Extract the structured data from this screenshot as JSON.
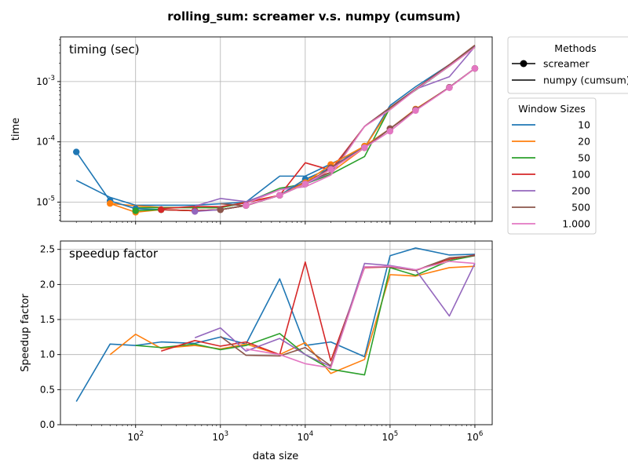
{
  "chart_data": {
    "type": "line",
    "title": "rolling_sum:  screamer v.s. numpy (cumsum)",
    "xlabel": "data size",
    "x_scale": "log",
    "x_tick_labels": [
      "10^2",
      "10^3",
      "10^4",
      "10^5",
      "10^6"
    ],
    "x_ticks": [
      100,
      1000,
      10000,
      100000,
      1000000
    ],
    "xlim": [
      13,
      1600000
    ],
    "legend_methods": {
      "title": "Methods",
      "placement": "outside top-right",
      "entries": [
        {
          "label": "screamer",
          "style": "line-with-dot"
        },
        {
          "label": "numpy (cumsum)",
          "style": "line"
        }
      ]
    },
    "legend_windows": {
      "title": "Window Sizes",
      "placement": "outside right",
      "entries": [
        {
          "label": "10",
          "color": "#1f77b4"
        },
        {
          "label": "20",
          "color": "#ff7f0e"
        },
        {
          "label": "50",
          "color": "#2ca02c"
        },
        {
          "label": "100",
          "color": "#d62728"
        },
        {
          "label": "200",
          "color": "#9467bd"
        },
        {
          "label": "500",
          "color": "#8c564b"
        },
        {
          "label": "1.000",
          "color": "#e377c2"
        }
      ]
    },
    "panels": [
      {
        "id": "timing",
        "annotation": "timing (sec)",
        "ylabel": "time",
        "y_scale": "log",
        "ylim": [
          4.8e-06,
          0.0055
        ],
        "y_ticks": [
          1e-05,
          0.0001,
          0.001
        ],
        "y_tick_labels": [
          "10^-5",
          "10^-4",
          "10^-3"
        ],
        "grid": true,
        "screamer_series": [
          {
            "window": "10",
            "color": "#1f77b4",
            "x": [
              20,
              50,
              100,
              200,
              500,
              1000,
              2000,
              5000,
              10000,
              20000,
              50000,
              100000,
              200000,
              500000,
              1000000
            ],
            "y": [
              6.8e-05,
              1.05e-05,
              7.8e-06,
              7.5e-06,
              7.2e-06,
              7.5e-06,
              8.8e-06,
              1.3e-05,
              2.4e-05,
              3.7e-05,
              8.5e-05,
              0.000165,
              0.00034,
              0.0008,
              0.00165
            ]
          },
          {
            "window": "20",
            "color": "#ff7f0e",
            "x": [
              50,
              100,
              200,
              500,
              1000,
              2000,
              5000,
              10000,
              20000,
              50000,
              100000,
              200000,
              500000,
              1000000
            ],
            "y": [
              9.5e-06,
              6.8e-06,
              7.5e-06,
              7.2e-06,
              7.5e-06,
              8.8e-06,
              1.3e-05,
              2.1e-05,
              4.2e-05,
              8.5e-05,
              0.000165,
              0.00035,
              0.0008,
              0.00165
            ]
          },
          {
            "window": "50",
            "color": "#2ca02c",
            "x": [
              100,
              200,
              500,
              1000,
              2000,
              5000,
              10000,
              20000,
              50000,
              100000,
              200000,
              500000,
              1000000
            ],
            "y": [
              7.2e-06,
              7.5e-06,
              7.2e-06,
              7.5e-06,
              8.8e-06,
              1.3e-05,
              2e-05,
              3.7e-05,
              8e-05,
              0.000165,
              0.00034,
              0.0008,
              0.00165
            ]
          },
          {
            "window": "100",
            "color": "#d62728",
            "x": [
              200,
              500,
              1000,
              2000,
              5000,
              10000,
              20000,
              50000,
              100000,
              200000,
              500000,
              1000000
            ],
            "y": [
              7.5e-06,
              7.2e-06,
              7.5e-06,
              8.8e-06,
              1.3e-05,
              2e-05,
              3.7e-05,
              8e-05,
              0.000165,
              0.00034,
              0.0008,
              0.00165
            ]
          },
          {
            "window": "200",
            "color": "#9467bd",
            "x": [
              500,
              1000,
              2000,
              5000,
              10000,
              20000,
              50000,
              100000,
              200000,
              500000,
              1000000
            ],
            "y": [
              7e-06,
              7.5e-06,
              8.8e-06,
              1.3e-05,
              2e-05,
              3.7e-05,
              8e-05,
              0.000165,
              0.00034,
              0.0008,
              0.00165
            ]
          },
          {
            "window": "500",
            "color": "#8c564b",
            "x": [
              1000,
              2000,
              5000,
              10000,
              20000,
              50000,
              100000,
              200000,
              500000,
              1000000
            ],
            "y": [
              7.5e-06,
              8.8e-06,
              1.3e-05,
              2e-05,
              3.7e-05,
              8e-05,
              0.000165,
              0.00034,
              0.0008,
              0.00165
            ]
          },
          {
            "window": "1.000",
            "color": "#e377c2",
            "x": [
              2000,
              5000,
              10000,
              20000,
              50000,
              100000,
              200000,
              500000,
              1000000
            ],
            "y": [
              8.8e-06,
              1.3e-05,
              2e-05,
              3.5e-05,
              8e-05,
              0.00015,
              0.00033,
              0.00079,
              0.00165
            ]
          }
        ],
        "numpy_series": [
          {
            "window": "10",
            "color": "#1f77b4",
            "x": [
              20,
              50,
              100,
              200,
              500,
              1000,
              2000,
              5000,
              10000,
              20000,
              50000,
              100000,
              200000,
              500000,
              1000000
            ],
            "y": [
              2.3e-05,
              1.2e-05,
              8.9e-06,
              8.9e-06,
              8.9e-06,
              9.4e-06,
              1e-05,
              2.7e-05,
              2.7e-05,
              4.3e-05,
              8e-05,
              0.0004,
              0.00082,
              0.0019,
              0.0039
            ]
          },
          {
            "window": "20",
            "color": "#ff7f0e",
            "x": [
              50,
              100,
              200,
              500,
              1000,
              2000,
              5000,
              10000,
              20000,
              50000,
              100000,
              200000,
              500000,
              1000000
            ],
            "y": [
              9.5e-06,
              8.7e-06,
              8.2e-06,
              8.1e-06,
              8.1e-06,
              1e-05,
              1.3e-05,
              2.4e-05,
              3.1e-05,
              8e-05,
              0.00036,
              0.00075,
              0.0018,
              0.0037
            ]
          },
          {
            "window": "50",
            "color": "#2ca02c",
            "x": [
              100,
              200,
              500,
              1000,
              2000,
              5000,
              10000,
              20000,
              50000,
              100000,
              200000,
              500000,
              1000000
            ],
            "y": [
              8.1e-06,
              8.1e-06,
              8.1e-06,
              8.1e-06,
              9.8e-06,
              1.7e-05,
              2e-05,
              2.9e-05,
              5.7e-05,
              0.00037,
              0.00072,
              0.0018,
              0.0038
            ]
          },
          {
            "window": "100",
            "color": "#d62728",
            "x": [
              200,
              500,
              1000,
              2000,
              5000,
              10000,
              20000,
              50000,
              100000,
              200000,
              500000,
              1000000
            ],
            "y": [
              7.8e-06,
              8.5e-06,
              8.4e-06,
              9.8e-06,
              1.3e-05,
              4.5e-05,
              3.4e-05,
              0.00018,
              0.00037,
              0.00075,
              0.0019,
              0.004
            ]
          },
          {
            "window": "200",
            "color": "#9467bd",
            "x": [
              500,
              1000,
              2000,
              5000,
              10000,
              20000,
              50000,
              100000,
              200000,
              500000,
              1000000
            ],
            "y": [
              8.6e-06,
              1.15e-05,
              1.02e-05,
              1.6e-05,
              2e-05,
              3.1e-05,
              0.00018,
              0.00037,
              0.00075,
              0.0012,
              0.0038
            ]
          },
          {
            "window": "500",
            "color": "#8c564b",
            "x": [
              1000,
              2000,
              5000,
              10000,
              20000,
              50000,
              100000,
              200000,
              500000,
              1000000
            ],
            "y": [
              9.4e-06,
              8.7e-06,
              1.3e-05,
              2.2e-05,
              3.1e-05,
              0.00018,
              0.00037,
              0.00075,
              0.0019,
              0.004
            ]
          },
          {
            "window": "1.000",
            "color": "#e377c2",
            "x": [
              2000,
              5000,
              10000,
              20000,
              50000,
              100000,
              200000,
              500000,
              1000000
            ],
            "y": [
              9.5e-06,
              1.6e-05,
              1.8e-05,
              2.8e-05,
              0.00018,
              0.00034,
              0.00073,
              0.0018,
              0.0037
            ]
          }
        ]
      },
      {
        "id": "speedup",
        "annotation": "speedup factor",
        "ylabel": "Speedup factor",
        "y_scale": "linear",
        "ylim": [
          0,
          2.62
        ],
        "y_ticks": [
          0,
          0.5,
          1,
          1.5,
          2,
          2.5
        ],
        "y_tick_labels": [
          "0.0",
          "0.5",
          "1.0",
          "1.5",
          "2.0",
          "2.5"
        ],
        "grid": true,
        "series": [
          {
            "window": "10",
            "color": "#1f77b4",
            "x": [
              20,
              50,
              100,
              200,
              500,
              1000,
              2000,
              5000,
              10000,
              20000,
              50000,
              100000,
              200000,
              500000,
              1000000
            ],
            "y": [
              0.33,
              1.15,
              1.13,
              1.18,
              1.16,
              1.25,
              1.15,
              2.08,
              1.13,
              1.18,
              0.97,
              2.41,
              2.52,
              2.42,
              2.43
            ]
          },
          {
            "window": "20",
            "color": "#ff7f0e",
            "x": [
              50,
              100,
              200,
              500,
              1000,
              2000,
              5000,
              10000,
              20000,
              50000,
              100000,
              200000,
              500000,
              1000000
            ],
            "y": [
              1.0,
              1.29,
              1.09,
              1.13,
              1.08,
              1.15,
              1.0,
              1.17,
              0.73,
              0.93,
              2.14,
              2.12,
              2.24,
              2.26
            ]
          },
          {
            "window": "50",
            "color": "#2ca02c",
            "x": [
              100,
              200,
              500,
              1000,
              2000,
              5000,
              10000,
              20000,
              50000,
              100000,
              200000,
              500000,
              1000000
            ],
            "y": [
              1.13,
              1.1,
              1.15,
              1.07,
              1.13,
              1.3,
              1.0,
              0.79,
              0.71,
              2.24,
              2.13,
              2.34,
              2.41
            ]
          },
          {
            "window": "100",
            "color": "#d62728",
            "x": [
              200,
              500,
              1000,
              2000,
              5000,
              10000,
              20000,
              50000,
              100000,
              200000,
              500000,
              1000000
            ],
            "y": [
              1.05,
              1.2,
              1.12,
              1.18,
              1.0,
              2.32,
              0.91,
              2.24,
              2.25,
              2.2,
              2.36,
              2.42
            ]
          },
          {
            "window": "200",
            "color": "#9467bd",
            "x": [
              500,
              1000,
              2000,
              5000,
              10000,
              20000,
              50000,
              100000,
              200000,
              500000,
              1000000
            ],
            "y": [
              1.24,
              1.38,
              1.05,
              1.23,
              1.0,
              0.83,
              2.3,
              2.27,
              2.21,
              1.55,
              2.3
            ]
          },
          {
            "window": "500",
            "color": "#8c564b",
            "x": [
              1000,
              2000,
              5000,
              10000,
              20000,
              50000,
              100000,
              200000,
              500000,
              1000000
            ],
            "y": [
              1.26,
              0.99,
              0.98,
              1.1,
              0.84,
              2.25,
              2.25,
              2.2,
              2.38,
              2.41
            ]
          },
          {
            "window": "1.000",
            "color": "#e377c2",
            "x": [
              2000,
              5000,
              10000,
              20000,
              50000,
              100000,
              200000,
              500000,
              1000000
            ],
            "y": [
              1.08,
              1.0,
              0.87,
              0.81,
              2.25,
              2.26,
              2.21,
              2.33,
              2.3
            ]
          }
        ]
      }
    ]
  }
}
